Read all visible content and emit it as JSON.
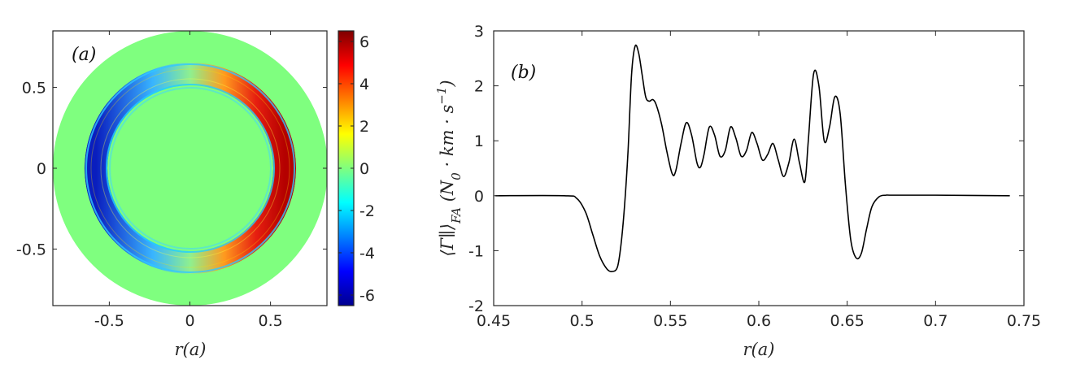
{
  "chart_data": [
    {
      "type": "heatmap",
      "panel_label": "(a)",
      "xlabel": "r(a)",
      "ylabel": "",
      "xlim": [
        -0.85,
        0.85
      ],
      "ylim": [
        -0.85,
        0.85
      ],
      "xticks": [
        -0.5,
        0,
        0.5
      ],
      "xtick_labels": [
        "-0.5",
        "0",
        "0.5"
      ],
      "yticks": [
        0.5,
        0,
        -0.5
      ],
      "ytick_labels": [
        "0.5",
        "0",
        "-0.5"
      ],
      "colorbar": {
        "colormap": "jet",
        "range": [
          -6.5,
          6.5
        ],
        "ticks": [
          6,
          4,
          2,
          0,
          -2,
          -4,
          -6
        ],
        "tick_labels": [
          "6",
          "4",
          "2",
          "0",
          "-2",
          "-4",
          "-6"
        ]
      },
      "disk_radius": 0.85,
      "ring_inner": 0.5,
      "ring_outer": 0.65,
      "ring_peak_value": 6,
      "background_value": 0,
      "colors": {
        "background": "#7fff7f",
        "positive": "#b40000",
        "negative": "#0a1ebe"
      }
    },
    {
      "type": "line",
      "panel_label": "(b)",
      "xlabel": "r(a)",
      "ylabel": "⟨Γ∥⟩FA (N0 · km · s−1)",
      "ylabel_parts": {
        "main": "⟨Γ∥⟩",
        "sub": "FA",
        "rest": " (N",
        "sub0": "0",
        "mid": " · km · s",
        "sup": "−1",
        "close": ")"
      },
      "xlim": [
        0.45,
        0.75
      ],
      "ylim": [
        -2,
        3
      ],
      "xticks": [
        0.45,
        0.5,
        0.55,
        0.6,
        0.65,
        0.7,
        0.75
      ],
      "xtick_labels": [
        "0.45",
        "0.5",
        "0.55",
        "0.6",
        "0.65",
        "0.7",
        "0.75"
      ],
      "yticks": [
        3,
        2,
        1,
        0,
        -1,
        -2
      ],
      "ytick_labels": [
        "3",
        "2",
        "1",
        "0",
        "-1",
        "-2"
      ],
      "series": [
        {
          "color": "#000000",
          "x": [
            0.451,
            0.49,
            0.497,
            0.502,
            0.506,
            0.51,
            0.514,
            0.517,
            0.52,
            0.522,
            0.524,
            0.526,
            0.528,
            0.53,
            0.532,
            0.534,
            0.536,
            0.538,
            0.54,
            0.542,
            0.545,
            0.548,
            0.551,
            0.553,
            0.556,
            0.559,
            0.562,
            0.565,
            0.567,
            0.569,
            0.572,
            0.575,
            0.578,
            0.581,
            0.584,
            0.587,
            0.59,
            0.593,
            0.596,
            0.599,
            0.602,
            0.605,
            0.608,
            0.611,
            0.614,
            0.617,
            0.62,
            0.623,
            0.626,
            0.628,
            0.631,
            0.634,
            0.637,
            0.64,
            0.643,
            0.646,
            0.649,
            0.652,
            0.655,
            0.658,
            0.661,
            0.664,
            0.668,
            0.672,
            0.676,
            0.7,
            0.742
          ],
          "y": [
            0,
            0,
            -0.05,
            -0.3,
            -0.7,
            -1.1,
            -1.33,
            -1.38,
            -1.3,
            -0.9,
            -0.2,
            0.8,
            2.2,
            2.72,
            2.6,
            2.2,
            1.8,
            1.72,
            1.75,
            1.65,
            1.3,
            0.8,
            0.4,
            0.45,
            0.95,
            1.33,
            1.1,
            0.6,
            0.52,
            0.75,
            1.25,
            1.1,
            0.72,
            0.82,
            1.25,
            1.05,
            0.72,
            0.82,
            1.15,
            0.95,
            0.65,
            0.75,
            0.95,
            0.65,
            0.35,
            0.6,
            1.03,
            0.6,
            0.25,
            1.0,
            2.22,
            2.0,
            1.0,
            1.25,
            1.8,
            1.5,
            0.2,
            -0.8,
            -1.13,
            -1.05,
            -0.6,
            -0.2,
            -0.02,
            0.01,
            0.01,
            0.01,
            0
          ]
        }
      ]
    }
  ]
}
